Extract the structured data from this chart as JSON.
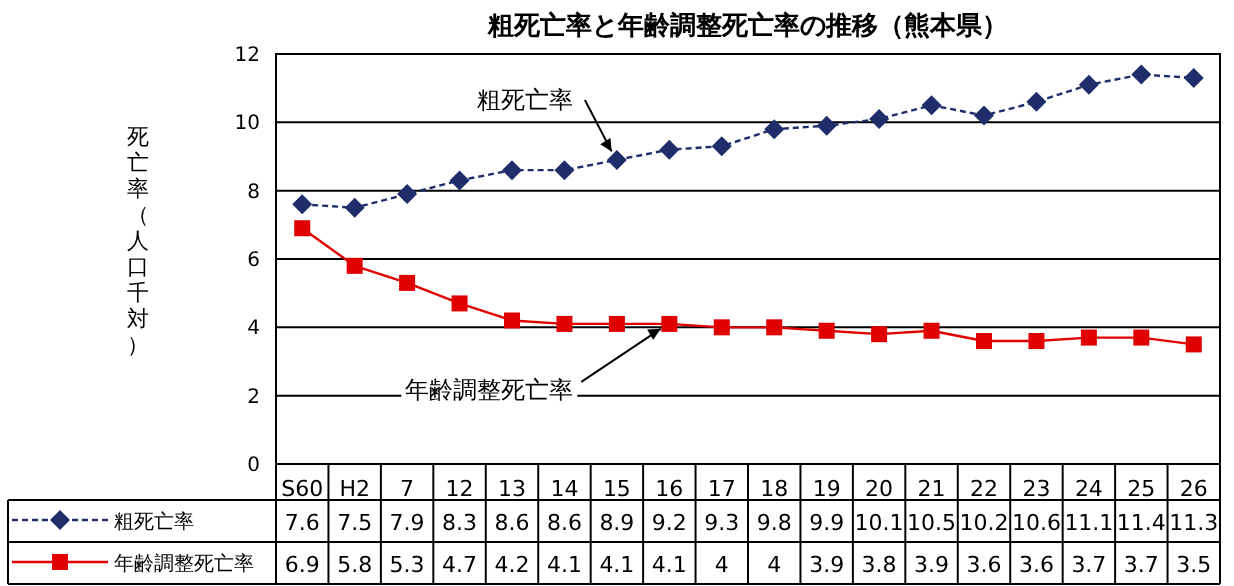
{
  "chart_data": {
    "type": "line",
    "title": "粗死亡率と年齢調整死亡率の推移（熊本県）",
    "ylabel": "死亡率（人口千対）",
    "categories": [
      "S60",
      "H2",
      "7",
      "12",
      "13",
      "14",
      "15",
      "16",
      "17",
      "18",
      "19",
      "20",
      "21",
      "22",
      "23",
      "24",
      "25",
      "26"
    ],
    "series": [
      {
        "name": "粗死亡率",
        "color": "#1f2d6b",
        "marker": "diamond",
        "line_style": "dashed",
        "values": [
          7.6,
          7.5,
          7.9,
          8.3,
          8.6,
          8.6,
          8.9,
          9.2,
          9.3,
          9.8,
          9.9,
          10.1,
          10.5,
          10.2,
          10.6,
          11.1,
          11.4,
          11.3
        ]
      },
      {
        "name": "年齢調整死亡率",
        "color": "#e00000",
        "marker": "square",
        "line_style": "solid",
        "values": [
          6.9,
          5.8,
          5.3,
          4.7,
          4.2,
          4.1,
          4.1,
          4.1,
          4,
          4,
          3.9,
          3.8,
          3.9,
          3.6,
          3.6,
          3.7,
          3.7,
          3.5
        ]
      }
    ],
    "ylim": [
      0,
      12
    ],
    "yticks": [
      0,
      2,
      4,
      6,
      8,
      10,
      12
    ],
    "grid": "y",
    "legend": "bottom",
    "data_labels": true,
    "annotations": [
      {
        "text": "粗死亡率",
        "x": "15",
        "y": 8.9
      },
      {
        "text": "年齢調整死亡率",
        "x": "16",
        "y": 4.1
      }
    ]
  }
}
